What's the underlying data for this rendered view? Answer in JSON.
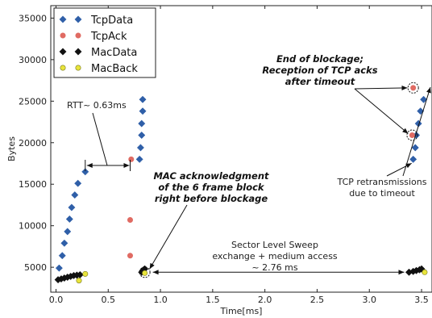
{
  "chart_data": {
    "type": "scatter",
    "xlabel": "Time[ms]",
    "ylabel": "Bytes",
    "xlim": [
      -0.05,
      3.6
    ],
    "ylim": [
      2000,
      36500
    ],
    "xticks": [
      "0.0",
      "0.5",
      "1.0",
      "1.5",
      "2.0",
      "2.5",
      "3.0",
      "3.5"
    ],
    "yticks": [
      "5000",
      "10000",
      "15000",
      "20000",
      "25000",
      "30000",
      "35000"
    ],
    "grid": false,
    "legend_position": "top-left",
    "series": [
      {
        "name": "TcpData",
        "color": "#2f5fa8",
        "marker": "diamond",
        "points": [
          [
            0.03,
            4900
          ],
          [
            0.06,
            6400
          ],
          [
            0.08,
            7900
          ],
          [
            0.11,
            9300
          ],
          [
            0.13,
            10800
          ],
          [
            0.15,
            12200
          ],
          [
            0.18,
            13700
          ],
          [
            0.21,
            15100
          ],
          [
            0.28,
            16500
          ],
          [
            0.8,
            18000
          ],
          [
            0.81,
            19400
          ],
          [
            0.82,
            20900
          ],
          [
            0.82,
            22300
          ],
          [
            0.83,
            23800
          ],
          [
            0.83,
            25200
          ],
          [
            3.42,
            18000
          ],
          [
            3.44,
            19400
          ],
          [
            3.45,
            20900
          ],
          [
            3.47,
            22300
          ],
          [
            3.49,
            23800
          ],
          [
            3.52,
            25200
          ]
        ]
      },
      {
        "name": "TcpAck",
        "color": "#e06b63",
        "marker": "circle",
        "points": [
          [
            0.71,
            6400
          ],
          [
            0.71,
            10700
          ],
          [
            0.72,
            18000
          ],
          [
            3.41,
            20900
          ],
          [
            3.42,
            26600
          ]
        ]
      },
      {
        "name": "MacData",
        "color": "#111111",
        "marker": "diamond",
        "points": [
          [
            0.02,
            3500
          ],
          [
            0.05,
            3600
          ],
          [
            0.08,
            3700
          ],
          [
            0.11,
            3800
          ],
          [
            0.14,
            3900
          ],
          [
            0.17,
            4000
          ],
          [
            0.2,
            4050
          ],
          [
            0.23,
            4100
          ],
          [
            0.82,
            4400
          ],
          [
            0.83,
            4600
          ],
          [
            0.84,
            4700
          ],
          [
            0.85,
            4800
          ],
          [
            3.38,
            4400
          ],
          [
            3.42,
            4500
          ],
          [
            3.45,
            4600
          ],
          [
            3.48,
            4700
          ],
          [
            3.5,
            4800
          ]
        ]
      },
      {
        "name": "MacBack",
        "color": "#e8e43b",
        "marker": "circle",
        "points": [
          [
            0.22,
            3400
          ],
          [
            0.28,
            4200
          ],
          [
            0.85,
            4300
          ],
          [
            3.53,
            4400
          ]
        ]
      }
    ],
    "annotations": {
      "rtt": "RTT~ 0.63ms",
      "end_blockage": [
        "End of blockage;",
        "Reception of TCP acks",
        "after timeout"
      ],
      "mac_ack": [
        "MAC acknowledgment",
        "of the 6 frame block",
        "right before blockage"
      ],
      "retrans": [
        "TCP retransmissions",
        "due to timeout"
      ],
      "sls": [
        "Sector Level Sweep",
        "exchange + medium access",
        "~ 2.76 ms"
      ]
    }
  }
}
